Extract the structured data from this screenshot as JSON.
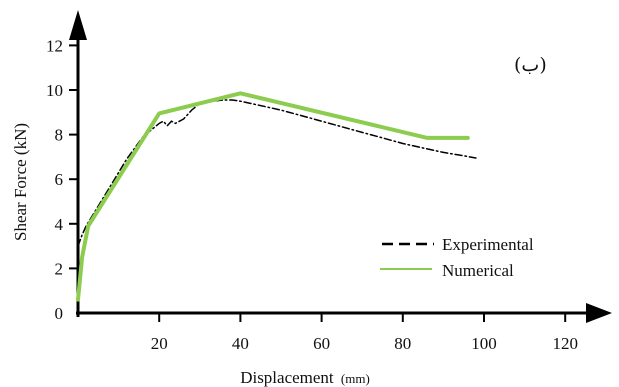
{
  "chart_data": {
    "type": "line",
    "panel_label": "(ب)",
    "xlabel": "Displacement",
    "xunit": "(mm)",
    "ylabel": "Shear Force (kN)",
    "xlim": [
      0,
      130
    ],
    "ylim": [
      0,
      12.6
    ],
    "xticks": [
      20,
      40,
      60,
      80,
      100,
      120
    ],
    "yticks": [
      0,
      2,
      4,
      6,
      8,
      10,
      12
    ],
    "legend_position": "bottom-right",
    "series": [
      {
        "name": "Experimental",
        "style": "dash-dot",
        "color": "#000000",
        "points": [
          [
            0,
            3.0
          ],
          [
            1,
            3.5
          ],
          [
            2,
            3.9
          ],
          [
            3,
            4.2
          ],
          [
            5,
            4.8
          ],
          [
            8,
            5.7
          ],
          [
            10,
            6.3
          ],
          [
            12,
            6.9
          ],
          [
            14,
            7.4
          ],
          [
            16,
            7.9
          ],
          [
            18,
            8.2
          ],
          [
            20,
            8.5
          ],
          [
            21,
            8.6
          ],
          [
            22,
            8.4
          ],
          [
            23,
            8.6
          ],
          [
            24,
            8.5
          ],
          [
            26,
            8.7
          ],
          [
            28,
            9.1
          ],
          [
            30,
            9.4
          ],
          [
            33,
            9.5
          ],
          [
            36,
            9.55
          ],
          [
            38,
            9.55
          ],
          [
            40,
            9.5
          ],
          [
            45,
            9.3
          ],
          [
            50,
            9.1
          ],
          [
            55,
            8.85
          ],
          [
            60,
            8.6
          ],
          [
            65,
            8.35
          ],
          [
            70,
            8.1
          ],
          [
            75,
            7.85
          ],
          [
            80,
            7.6
          ],
          [
            85,
            7.4
          ],
          [
            90,
            7.2
          ],
          [
            95,
            7.05
          ],
          [
            98,
            6.95
          ]
        ]
      },
      {
        "name": "Numerical",
        "style": "solid",
        "color": "#8ccc4e",
        "points": [
          [
            0,
            0.6
          ],
          [
            1,
            2.5
          ],
          [
            2.5,
            3.9
          ],
          [
            20,
            8.95
          ],
          [
            40,
            9.85
          ],
          [
            86,
            7.85
          ],
          [
            96,
            7.85
          ]
        ]
      }
    ]
  }
}
